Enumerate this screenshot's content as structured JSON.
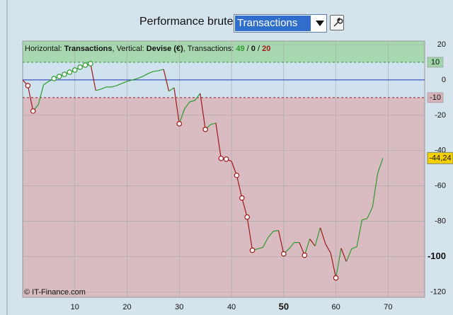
{
  "header": {
    "title": "Performance brute",
    "select": "Transactions"
  },
  "chart_data": {
    "type": "line",
    "info": [
      {
        "text": "Horizontal: ",
        "style": "plain"
      },
      {
        "text": "Transactions",
        "style": "bold"
      },
      {
        "text": ", Vertical: ",
        "style": "plain"
      },
      {
        "text": "Devise (€)",
        "style": "bold"
      },
      {
        "text": ", Transactions: ",
        "style": "plain"
      },
      {
        "text": "49",
        "style": "up"
      },
      {
        "text": " / ",
        "style": "plain"
      },
      {
        "text": "0",
        "style": "bold"
      },
      {
        "text": " / ",
        "style": "plain"
      },
      {
        "text": "20",
        "style": "down"
      }
    ],
    "x": [
      0,
      1,
      2,
      3,
      4,
      5,
      6,
      7,
      8,
      9,
      10,
      11,
      12,
      13,
      14,
      15,
      16,
      17,
      18,
      19,
      20,
      21,
      22,
      23,
      24,
      25,
      26,
      27,
      28,
      29,
      30,
      31,
      32,
      33,
      34,
      35,
      36,
      37,
      38,
      39,
      40,
      41,
      42,
      43,
      44,
      45,
      46,
      47,
      48,
      49,
      50,
      51,
      52,
      53,
      54,
      55,
      56,
      57,
      58,
      59,
      60,
      61,
      62,
      63,
      64,
      65,
      66,
      67,
      68,
      69
    ],
    "values": [
      0,
      -3.2,
      -17.6,
      -14,
      -2.8,
      -0.8,
      0.8,
      2,
      3.2,
      4.4,
      5.6,
      7.2,
      8.4,
      9.2,
      -6,
      -5.2,
      -4,
      -4,
      -3.2,
      -2,
      -0.8,
      0,
      0.8,
      2,
      3.6,
      4.8,
      5.2,
      6,
      -6.4,
      -4.4,
      -24.8,
      -16.4,
      -12.4,
      -11.6,
      -7.6,
      -28,
      -25.2,
      -24.4,
      -44.4,
      -44.8,
      -46,
      -54,
      -66.8,
      -77.6,
      -96.4,
      -95.6,
      -94.8,
      -89.2,
      -85.6,
      -85.2,
      -98.4,
      -95.6,
      -92,
      -92,
      -99.2,
      -90,
      -94,
      -83.6,
      -92.8,
      -98,
      -112,
      -95.2,
      -102.8,
      -95.6,
      -94.4,
      -79.2,
      -78.4,
      -72,
      -52.8,
      -44.24
    ],
    "last_value_label": "-44,24",
    "markers_up": [
      6,
      7,
      8,
      9,
      10,
      11,
      12,
      13
    ],
    "markers_down": [
      1,
      2,
      30,
      35,
      38,
      39,
      41,
      42,
      43,
      44,
      50,
      54,
      60
    ],
    "up_color": "#2e9a2e",
    "down_color": "#a01818",
    "upper_band": {
      "value": 10,
      "label": "10"
    },
    "lower_band": {
      "value": -10,
      "label": "-10"
    },
    "xlim": [
      0,
      77
    ],
    "ylim": [
      -123,
      22
    ],
    "xticks": [
      10,
      20,
      30,
      40,
      50,
      60,
      70
    ],
    "xtick_bold": 50,
    "yticks": [
      20,
      0,
      -20,
      -40,
      -60,
      -80,
      -100,
      -120
    ],
    "ytick_bold": -100,
    "grid": true,
    "footer": "© IT-Finance.com"
  }
}
